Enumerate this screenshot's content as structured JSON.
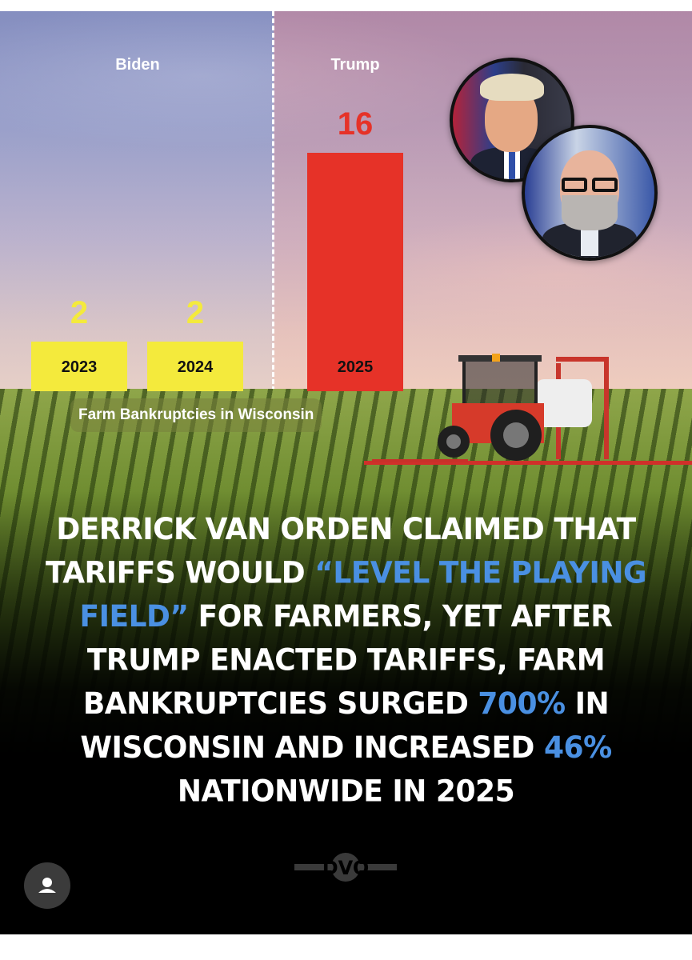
{
  "chart_data": {
    "type": "bar",
    "title": "Farm Bankruptcies in Wisconsin",
    "categories": [
      "2023",
      "2024",
      "2025"
    ],
    "values": [
      2,
      2,
      16
    ],
    "value_labels": [
      "2",
      "2",
      "16"
    ],
    "groups": [
      {
        "label": "Biden",
        "categories": [
          "2023",
          "2024"
        ]
      },
      {
        "label": "Trump",
        "categories": [
          "2025"
        ]
      }
    ],
    "bar_colors": [
      "#f4ea3c",
      "#f4ea3c",
      "#e63228"
    ],
    "value_label_colors": [
      "#f4ea3c",
      "#f4ea3c",
      "#e63228"
    ],
    "ylim": [
      0,
      16
    ],
    "grid": false,
    "legend": "none"
  },
  "headline": {
    "part1": "Derrick Van Orden claimed that tariffs would ",
    "quote": "“level the playing field”",
    "part2": " for farmers, yet after Trump enacted tariffs, farm bankruptcies surged ",
    "pct1": "700%",
    "part3": " in Wisconsin and increased ",
    "pct2": "46%",
    "part4": " nationwide in 2025"
  },
  "logo": {
    "text": "DVO"
  },
  "icons": {
    "profile": "person-icon",
    "portrait_left": "trump-portrait",
    "portrait_right": "van-orden-portrait"
  },
  "colors": {
    "accent_blue": "#4a90e2",
    "bar_yellow": "#f4ea3c",
    "bar_red": "#e63228"
  }
}
